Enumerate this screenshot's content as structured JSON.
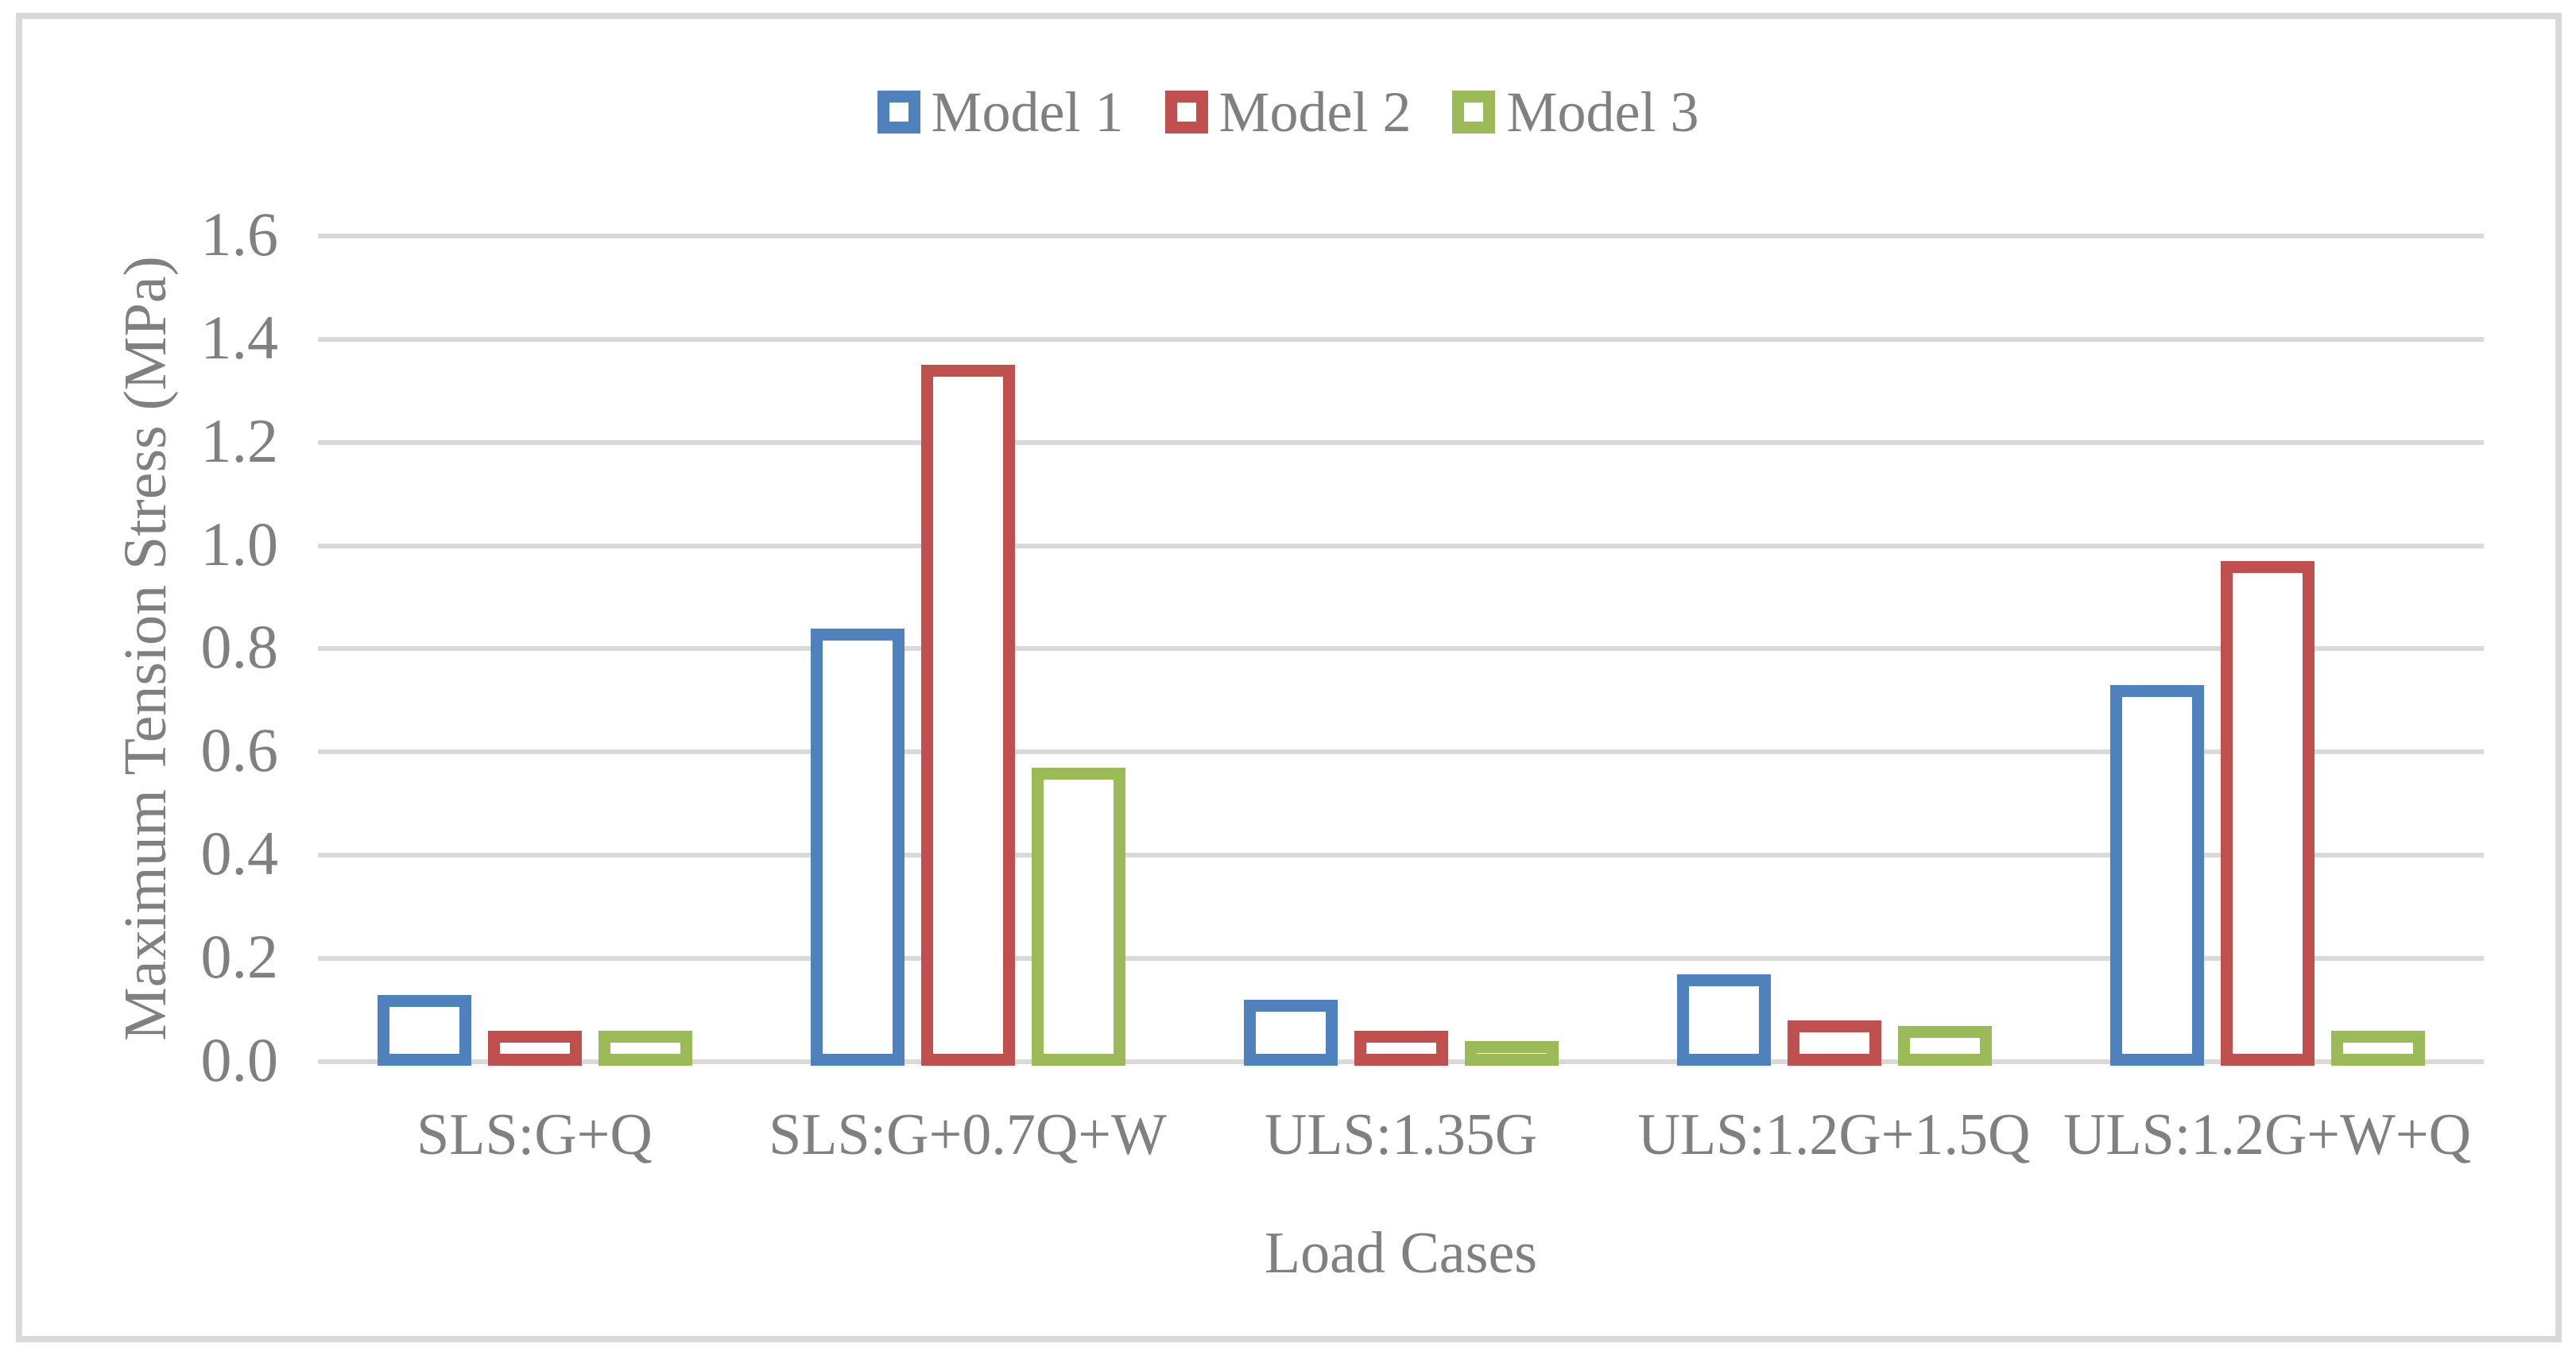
{
  "chart_data": {
    "type": "bar",
    "title": "",
    "xlabel": "Load Cases",
    "ylabel": "Maximum Tension Stress (MPa)",
    "categories": [
      "SLS:G+Q",
      "SLS:G+0.7Q+W",
      "ULS:1.35G",
      "ULS:1.2G+1.5Q",
      "ULS:1.2G+W+Q"
    ],
    "series": [
      {
        "name": "Model 1",
        "color": "#4F81BD",
        "values": [
          0.13,
          0.84,
          0.12,
          0.17,
          0.73
        ]
      },
      {
        "name": "Model 2",
        "color": "#C0504D",
        "values": [
          0.06,
          1.35,
          0.06,
          0.08,
          0.97
        ]
      },
      {
        "name": "Model 3",
        "color": "#9BBB59",
        "values": [
          0.06,
          0.57,
          0.04,
          0.07,
          0.06
        ]
      }
    ],
    "ylim": [
      0.0,
      1.6
    ],
    "ytick_step": 0.2,
    "ytick_labels": [
      "0.0",
      "0.2",
      "0.4",
      "0.6",
      "0.8",
      "1.0",
      "1.2",
      "1.4",
      "1.6"
    ],
    "grid": true,
    "legend_position": "top",
    "bar_style": "hollow-outline",
    "gridline_color": "#D9D9D9",
    "text_color": "#808080",
    "plot_border_color": "#D9D9D9"
  }
}
